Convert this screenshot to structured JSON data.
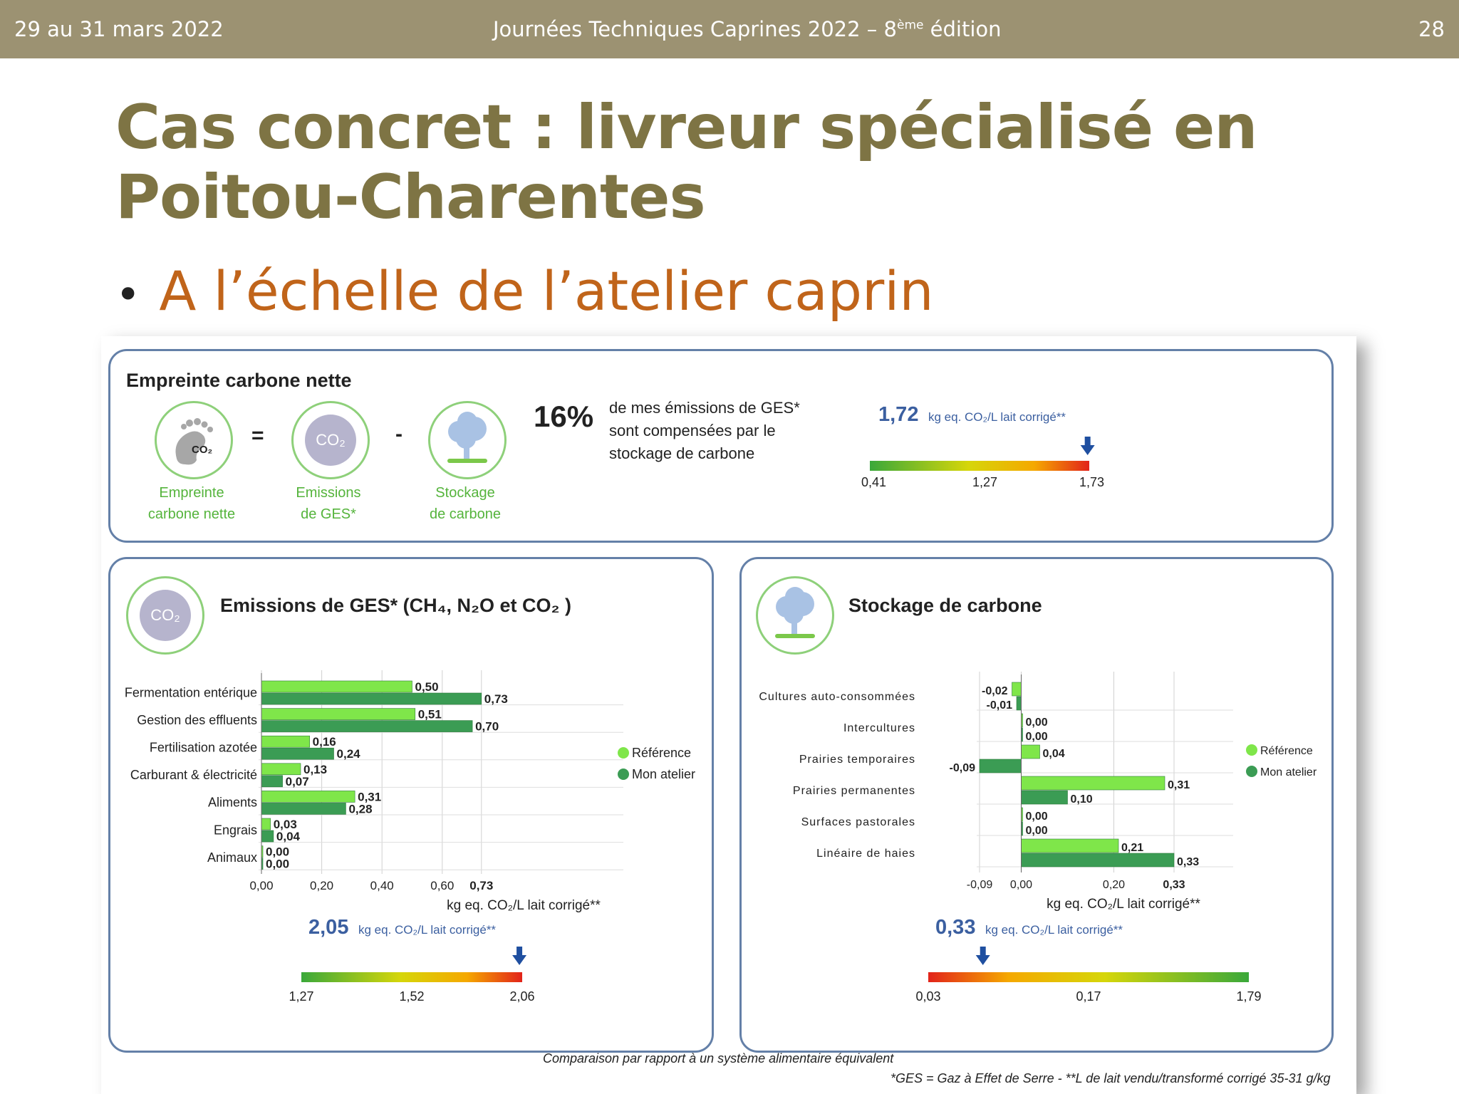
{
  "header": {
    "date": "29 au 31 mars 2022",
    "event": "Journées Techniques Caprines 2022 – 8",
    "event_sup": "ème",
    "event_end": " édition",
    "page": "28"
  },
  "title_line1": "Cas concret : livreur spécialisé en",
  "title_line2": "Poitou-Charentes",
  "bullet": "A l’échelle de l’atelier caprin",
  "colors": {
    "reference": "#7fe64a",
    "mon_atelier": "#3b9c54",
    "header_bg": "#9c9272",
    "title": "#7e7444",
    "bullet": "#c0641a"
  },
  "net": {
    "title": "Empreinte carbone nette",
    "icons": [
      {
        "name": "footprint-icon",
        "text": "CO₂",
        "label1": "Empreinte",
        "label2": "carbone nette"
      },
      {
        "name": "co2-cloud-icon",
        "text": "CO₂",
        "label1": "Emissions",
        "label2": "de GES*"
      },
      {
        "name": "tree-icon",
        "text": "",
        "label1": "Stockage",
        "label2": "de carbone"
      }
    ],
    "eq": "=",
    "minus": "-",
    "percent": "16%",
    "percent_text": "de mes émissions de GES* sont compensées par le stockage de carbone",
    "value": "1,72",
    "unit": "kg eq. CO₂/L lait corrigé**",
    "scale": [
      "0,41",
      "1,27",
      "1,73"
    ]
  },
  "emissions": {
    "title": "Emissions de GES* (CH₄, N₂O et CO₂ )",
    "value": "2,05",
    "unit": "kg eq. CO₂/L lait corrigé**",
    "scale": [
      "1,27",
      "1,52",
      "2,06"
    ],
    "legend": [
      "Référence",
      "Mon atelier"
    ]
  },
  "stockage": {
    "title": "Stockage de carbone",
    "value": "0,33",
    "unit": "kg eq. CO₂/L lait corrigé**",
    "scale": [
      "0,03",
      "0,17",
      "1,79"
    ],
    "legend": [
      "Référence",
      "Mon atelier"
    ]
  },
  "footnote1": "Comparaison par rapport à un système alimentaire équivalent",
  "footnote2": "*GES = Gaz à Effet de Serre - **L de lait vendu/transformé corrigé 35-31 g/kg",
  "chart_data": [
    {
      "type": "bar",
      "title": "Emissions de GES* (CH₄, N₂O et CO₂ )",
      "orientation": "horizontal",
      "categories": [
        "Fermentation entérique",
        "Gestion des effluents",
        "Fertilisation azotée",
        "Carburant & électricité",
        "Aliments",
        "Engrais",
        "Animaux"
      ],
      "series": [
        {
          "name": "Référence",
          "values": [
            0.5,
            0.51,
            0.16,
            0.13,
            0.31,
            0.03,
            0.0
          ],
          "labels": [
            "0,50",
            "0,51",
            "0,16",
            "0,13",
            "0,31",
            "0,03",
            "0,00"
          ]
        },
        {
          "name": "Mon atelier",
          "values": [
            0.73,
            0.7,
            0.24,
            0.07,
            0.28,
            0.04,
            0.0
          ],
          "labels": [
            "0,73",
            "0,70",
            "0,24",
            "0,07",
            "0,28",
            "0,04",
            "0,00"
          ]
        }
      ],
      "xlabel": "kg eq. CO₂/L lait corrigé**",
      "xlim": [
        0,
        0.9
      ],
      "xticks": [
        0,
        0.2,
        0.4,
        0.6,
        0.73
      ],
      "xtick_labels": [
        "0,00",
        "0,20",
        "0,40",
        "0,60",
        "0,73"
      ],
      "legend": "right",
      "grid": true
    },
    {
      "type": "bar",
      "title": "Stockage de carbone",
      "orientation": "horizontal",
      "categories": [
        "Cultures auto-consommées",
        "Intercultures",
        "Prairies temporaires",
        "Prairies permanentes",
        "Surfaces pastorales",
        "Linéaire de haies"
      ],
      "series": [
        {
          "name": "Référence",
          "values": [
            -0.02,
            0.0,
            0.04,
            0.31,
            0.0,
            0.21
          ],
          "labels": [
            "-0,02",
            "0,00",
            "0,04",
            "0,31",
            "0,00",
            "0,21"
          ]
        },
        {
          "name": "Mon atelier",
          "values": [
            -0.01,
            0.0,
            -0.09,
            0.1,
            0.0,
            0.33
          ],
          "labels": [
            "-0,01",
            "0,00",
            "-0,09",
            "0,10",
            "0,00",
            "0,33"
          ]
        }
      ],
      "xlabel": "kg eq. CO₂/L lait corrigé**",
      "xlim": [
        -0.09,
        0.45
      ],
      "xticks": [
        -0.09,
        0.0,
        0.2,
        0.33
      ],
      "xtick_labels": [
        "-0,09",
        "0,00",
        "0,20",
        "0,33"
      ],
      "legend": "right",
      "grid": true
    },
    {
      "type": "gauge",
      "title": "Empreinte carbone nette",
      "value": 1.72,
      "scale": [
        0.41,
        1.27,
        1.73
      ]
    },
    {
      "type": "gauge",
      "title": "Emissions de GES*",
      "value": 2.05,
      "scale": [
        1.27,
        1.52,
        2.06
      ]
    },
    {
      "type": "gauge",
      "title": "Stockage de carbone",
      "value": 0.33,
      "scale": [
        0.03,
        0.17,
        1.79
      ]
    }
  ]
}
